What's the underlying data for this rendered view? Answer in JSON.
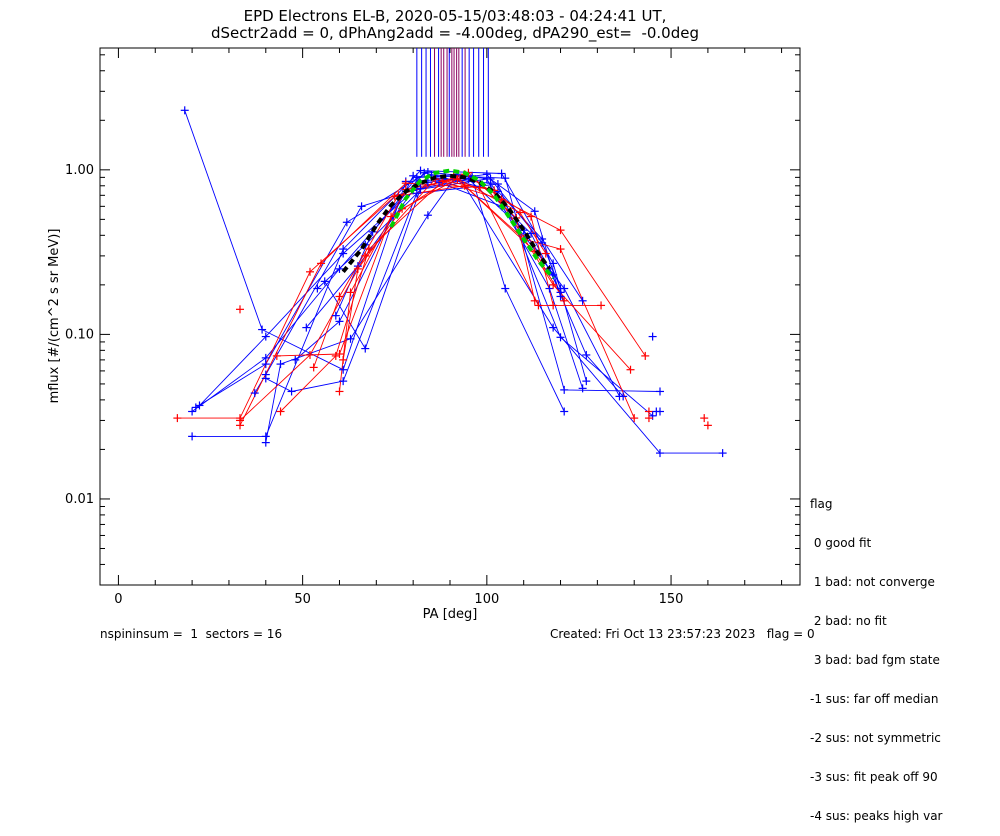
{
  "chart_data": {
    "type": "scatter",
    "title": "EPD Electrons EL-B, 2020-05-15/03:48:03 - 04:24:41 UT,",
    "subtitle": "dSectr2add = 0, dPhAng2add = -4.00deg, dPA290_est=  -0.0deg",
    "xlabel": "PA [deg]",
    "ylabel": "mflux [#/(cm^2 s sr MeV)]",
    "xlim": [
      -5,
      185
    ],
    "ylim": [
      0.003,
      5.5
    ],
    "yscale": "log",
    "x_ticks": [
      0,
      50,
      100,
      150
    ],
    "x_tick_labels": [
      "0",
      "50",
      "100",
      "150"
    ],
    "y_ticks": [
      0.01,
      0.1,
      1.0
    ],
    "y_tick_labels": [
      "0.01",
      "0.10",
      "1.00"
    ],
    "colors": {
      "blue": "#0000ff",
      "red": "#ff0000",
      "purple": "#8b0060",
      "green": "#00d000",
      "black": "#000000"
    },
    "series": [
      {
        "color": "blue",
        "points": [
          [
            18,
            2.3
          ],
          [
            39,
            0.107
          ],
          [
            61,
            0.061
          ],
          [
            78,
            0.85
          ],
          [
            96,
            0.89
          ],
          [
            105,
            0.19
          ],
          [
            121,
            0.034
          ]
        ]
      },
      {
        "color": "blue",
        "points": [
          [
            21,
            0.036
          ],
          [
            40,
            0.066
          ],
          [
            62,
            0.48
          ],
          [
            84,
            0.97
          ],
          [
            101,
            0.88
          ],
          [
            113,
            0.56
          ],
          [
            120,
            0.17
          ]
        ]
      },
      {
        "color": "blue",
        "points": [
          [
            20,
            0.034
          ],
          [
            40,
            0.072
          ],
          [
            60,
            0.25
          ],
          [
            83,
            0.96
          ],
          [
            103,
            0.74
          ],
          [
            115,
            0.38
          ],
          [
            126,
            0.16
          ]
        ]
      },
      {
        "color": "blue",
        "points": [
          [
            20,
            0.024
          ],
          [
            40,
            0.024
          ],
          [
            61,
            0.33
          ],
          [
            82,
            0.99
          ],
          [
            104,
            0.95
          ],
          [
            118,
            0.27
          ],
          [
            127,
            0.052
          ]
        ]
      },
      {
        "color": "blue",
        "points": [
          [
            22,
            0.037
          ],
          [
            40,
            0.097
          ],
          [
            61,
            0.31
          ],
          [
            85,
            0.93
          ],
          [
            105,
            0.89
          ],
          [
            121,
            0.046
          ],
          [
            147,
            0.045
          ]
        ]
      },
      {
        "color": "blue",
        "points": [
          [
            37,
            0.044
          ],
          [
            40,
            0.057
          ],
          [
            66,
            0.6
          ],
          [
            87,
            0.84
          ],
          [
            104,
            0.6
          ],
          [
            121,
            0.19
          ],
          [
            136,
            0.042
          ]
        ]
      },
      {
        "color": "blue",
        "points": [
          [
            40,
            0.022
          ],
          [
            44,
            0.066
          ],
          [
            63,
            0.094
          ],
          [
            84,
            0.53
          ],
          [
            92,
            0.94
          ],
          [
            118,
            0.11
          ],
          [
            147,
            0.019
          ],
          [
            164,
            0.019
          ]
        ]
      },
      {
        "color": "blue",
        "points": [
          [
            40,
            0.054
          ],
          [
            47,
            0.045
          ],
          [
            61,
            0.052
          ],
          [
            81,
            0.72
          ],
          [
            103,
            0.82
          ],
          [
            120,
            0.096
          ],
          [
            145,
            0.032
          ]
        ]
      },
      {
        "color": "blue",
        "points": [
          [
            48,
            0.07
          ],
          [
            60,
            0.12
          ],
          [
            80,
            0.92
          ],
          [
            101,
            0.83
          ],
          [
            117,
            0.25
          ],
          [
            127,
            0.075
          ],
          [
            137,
            0.042
          ]
        ]
      },
      {
        "color": "blue",
        "points": [
          [
            51,
            0.11
          ],
          [
            65,
            0.26
          ],
          [
            80,
            0.75
          ],
          [
            100,
            0.88
          ],
          [
            117,
            0.19
          ],
          [
            126,
            0.047
          ]
        ]
      },
      {
        "color": "blue",
        "points": [
          [
            54,
            0.19
          ],
          [
            67,
            0.35
          ],
          [
            84,
            0.84
          ],
          [
            100,
            0.94
          ],
          [
            115,
            0.36
          ],
          [
            120,
            0.19
          ]
        ]
      },
      {
        "color": "blue",
        "points": [
          [
            56,
            0.21
          ],
          [
            67,
            0.082
          ],
          [
            82,
            0.77
          ],
          [
            95,
            0.88
          ],
          [
            110,
            0.43
          ],
          [
            118,
            0.23
          ]
        ]
      },
      {
        "color": "blue",
        "points": [
          [
            59,
            0.13
          ],
          [
            69,
            0.42
          ],
          [
            81,
            0.9
          ],
          [
            96,
            0.92
          ],
          [
            112,
            0.41
          ],
          [
            120,
            0.18
          ]
        ]
      },
      {
        "color": "red",
        "points": [
          [
            16,
            0.031
          ],
          [
            33,
            0.031
          ],
          [
            52,
            0.24
          ],
          [
            75,
            0.69
          ],
          [
            94,
            0.8
          ],
          [
            113,
            0.32
          ],
          [
            121,
            0.16
          ]
        ]
      },
      {
        "color": "red",
        "points": [
          [
            33,
            0.028
          ],
          [
            55,
            0.27
          ],
          [
            78,
            0.83
          ],
          [
            98,
            0.78
          ],
          [
            114,
            0.15
          ],
          [
            131,
            0.15
          ]
        ]
      },
      {
        "color": "red",
        "points": [
          [
            33,
            0.03
          ],
          [
            52,
            0.075
          ],
          [
            67,
            0.3
          ],
          [
            86,
            0.88
          ],
          [
            102,
            0.75
          ],
          [
            118,
            0.2
          ],
          [
            139,
            0.061
          ]
        ]
      },
      {
        "color": "red",
        "points": [
          [
            44,
            0.034
          ],
          [
            59,
            0.074
          ],
          [
            68,
            0.33
          ],
          [
            88,
            0.85
          ],
          [
            104,
            0.66
          ],
          [
            120,
            0.43
          ],
          [
            143,
            0.074
          ]
        ]
      },
      {
        "color": "red",
        "points": [
          [
            43,
            0.074
          ],
          [
            60,
            0.076
          ],
          [
            74,
            0.52
          ],
          [
            91,
            0.91
          ],
          [
            109,
            0.55
          ],
          [
            116,
            0.31
          ]
        ]
      },
      {
        "color": "red",
        "points": [
          [
            53,
            0.063
          ],
          [
            60,
            0.17
          ],
          [
            76,
            0.7
          ],
          [
            94,
            0.94
          ],
          [
            112,
            0.52
          ],
          [
            118,
            0.15
          ]
        ]
      },
      {
        "color": "red",
        "points": [
          [
            60,
            0.045
          ],
          [
            63,
            0.18
          ],
          [
            78,
            0.76
          ],
          [
            92,
            0.88
          ],
          [
            110,
            0.38
          ],
          [
            120,
            0.33
          ],
          [
            140,
            0.031
          ]
        ]
      },
      {
        "color": "red",
        "points": [
          [
            61,
            0.07
          ],
          [
            65,
            0.25
          ],
          [
            77,
            0.58
          ],
          [
            95,
            0.96
          ],
          [
            108,
            0.51
          ],
          [
            113,
            0.16
          ]
        ]
      }
    ],
    "isolated_points": [
      {
        "color": "red",
        "x": 33,
        "y": 0.142
      },
      {
        "color": "red",
        "x": 144,
        "y": 0.031
      },
      {
        "color": "red",
        "x": 144,
        "y": 0.034
      },
      {
        "color": "red",
        "x": 159,
        "y": 0.031
      },
      {
        "color": "red",
        "x": 160,
        "y": 0.028
      },
      {
        "color": "blue",
        "x": 145,
        "y": 0.097
      },
      {
        "color": "blue",
        "x": 146,
        "y": 0.034
      },
      {
        "color": "blue",
        "x": 147,
        "y": 0.034
      }
    ],
    "fit_curves": [
      {
        "color": "black",
        "style": "dashed",
        "points": [
          [
            61,
            0.24
          ],
          [
            66,
            0.33
          ],
          [
            70,
            0.46
          ],
          [
            74,
            0.61
          ],
          [
            78,
            0.74
          ],
          [
            82,
            0.83
          ],
          [
            86,
            0.9
          ],
          [
            90,
            0.92
          ],
          [
            94,
            0.9
          ],
          [
            98,
            0.84
          ],
          [
            102,
            0.73
          ],
          [
            106,
            0.58
          ],
          [
            110,
            0.43
          ],
          [
            114,
            0.31
          ],
          [
            117,
            0.25
          ]
        ]
      },
      {
        "color": "green",
        "style": "dashed",
        "points": [
          [
            74,
            0.45
          ],
          [
            78,
            0.67
          ],
          [
            82,
            0.86
          ],
          [
            86,
            0.96
          ],
          [
            90,
            0.99
          ],
          [
            94,
            0.96
          ],
          [
            98,
            0.86
          ],
          [
            102,
            0.7
          ],
          [
            106,
            0.52
          ],
          [
            110,
            0.38
          ],
          [
            114,
            0.28
          ],
          [
            118,
            0.22
          ]
        ]
      }
    ],
    "flag_marks": [
      {
        "x": 81,
        "color": "blue"
      },
      {
        "x": 82.3,
        "color": "blue"
      },
      {
        "x": 83.5,
        "color": "blue"
      },
      {
        "x": 84.7,
        "color": "blue"
      },
      {
        "x": 85.8,
        "color": "purple"
      },
      {
        "x": 86.9,
        "color": "blue"
      },
      {
        "x": 87.6,
        "color": "purple"
      },
      {
        "x": 88.3,
        "color": "purple"
      },
      {
        "x": 89.2,
        "color": "purple"
      },
      {
        "x": 89.8,
        "color": "blue"
      },
      {
        "x": 90.5,
        "color": "purple"
      },
      {
        "x": 91.1,
        "color": "purple"
      },
      {
        "x": 91.8,
        "color": "purple"
      },
      {
        "x": 92.4,
        "color": "purple"
      },
      {
        "x": 93.3,
        "color": "blue"
      },
      {
        "x": 94.1,
        "color": "purple"
      },
      {
        "x": 95.2,
        "color": "blue"
      },
      {
        "x": 96.4,
        "color": "blue"
      },
      {
        "x": 97.8,
        "color": "blue"
      },
      {
        "x": 99.1,
        "color": "blue"
      },
      {
        "x": 100.4,
        "color": "blue"
      }
    ],
    "flag_mark_range": [
      1.2,
      5.5
    ],
    "legend": {
      "title": "flag",
      "entries": [
        " 0 good fit",
        " 1 bad: not converge",
        " 2 bad: no fit",
        " 3 bad: bad fgm state",
        "-1 sus: far off median",
        "-2 sus: not symmetric",
        "-3 sus: fit peak off 90",
        "-4 sus: peaks high var"
      ]
    }
  },
  "footer": {
    "left": "nspininsum =  1  sectors = 16",
    "right": "Created: Fri Oct 13 23:57:23 2023   flag = 0"
  }
}
